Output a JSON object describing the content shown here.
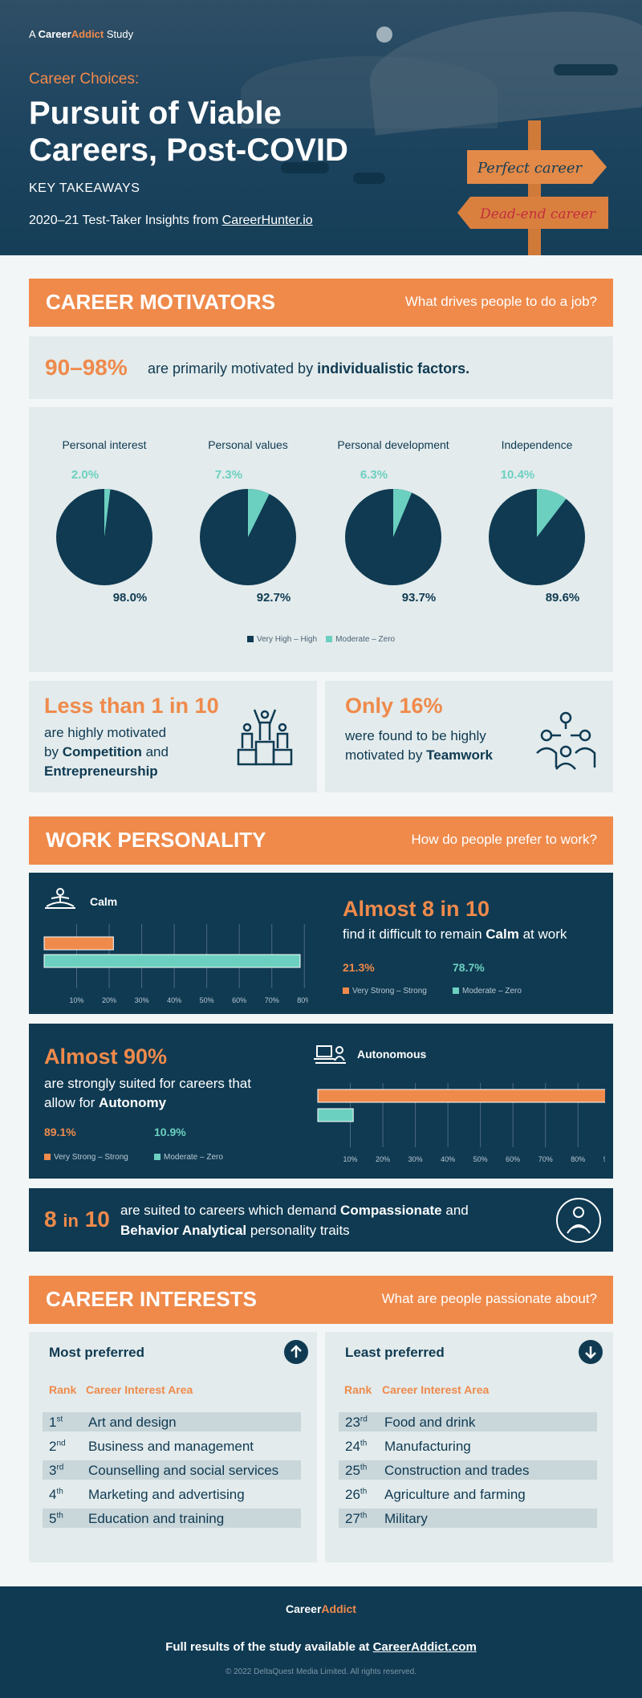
{
  "header": {
    "brand_prefix": "A",
    "brand_career": "Career",
    "brand_addict": "Addict",
    "brand_suffix": "Study",
    "kicker": "Career Choices:",
    "title": "Pursuit of Viable Careers, Post-COVID",
    "subtitle": "KEY TAKEAWAYS",
    "insight_prefix": "2020–21 Test-Taker Insights from",
    "insight_link": "CareerHunter.io",
    "sign_top": "Perfect career",
    "sign_bottom": "Dead-end career"
  },
  "motivators": {
    "title": "CAREER MOTIVATORS",
    "question": "What drives people to do a job?",
    "stat": "90–98%",
    "stat_text_pre": "are primarily motivated by",
    "stat_text_bold": "individualistic factors.",
    "less_title": "Less than 1 in 10",
    "less_l1": "are highly motivated",
    "less_l2_pre": "by",
    "less_b1": "Competition",
    "less_and": "and",
    "less_b2": "Entrepreneurship",
    "only_title": "Only 16%",
    "only_l1": "were found to be highly",
    "only_l2_pre": "motivated by",
    "only_b": "Teamwork"
  },
  "personality": {
    "title": "WORK PERSONALITY",
    "question": "How do people prefer to work?",
    "calm_label": "Calm",
    "calm_stat": "Almost 8 in 10",
    "calm_text_pre": "find it difficult to remain",
    "calm_text_bold": "Calm",
    "calm_text_post": "at work",
    "calm_v1": "21.3%",
    "calm_v2": "78.7%",
    "auto_label": "Autonomous",
    "auto_stat": "Almost 90%",
    "auto_l1": "are strongly suited for careers that",
    "auto_l2_pre": "allow for",
    "auto_l2_bold": "Autonomy",
    "auto_v1": "89.1%",
    "auto_v2": "10.9%",
    "leg1": "Very Strong – Strong",
    "leg2": "Moderate – Zero",
    "comp_stat_a": "8",
    "comp_stat_b": "in",
    "comp_stat_c": "10",
    "comp_l1_pre": "are suited to careers which demand",
    "comp_b1": "Compassionate",
    "comp_and": "and",
    "comp_b2": "Behavior Analytical",
    "comp_post": "personality traits"
  },
  "interests": {
    "title": "CAREER INTERESTS",
    "question": "What are people passionate about?",
    "most_title": "Most preferred",
    "least_title": "Least preferred",
    "rank_h": "Rank",
    "area_h": "Career Interest Area",
    "most": [
      {
        "num": "1",
        "suf": "st",
        "area": "Art and design"
      },
      {
        "num": "2",
        "suf": "nd",
        "area": "Business and management"
      },
      {
        "num": "3",
        "suf": "rd",
        "area": "Counselling and social services"
      },
      {
        "num": "4",
        "suf": "th",
        "area": "Marketing and advertising"
      },
      {
        "num": "5",
        "suf": "th",
        "area": "Education and training"
      }
    ],
    "least": [
      {
        "num": "23",
        "suf": "rd",
        "area": "Food and drink"
      },
      {
        "num": "24",
        "suf": "th",
        "area": "Manufacturing"
      },
      {
        "num": "25",
        "suf": "th",
        "area": "Construction and trades"
      },
      {
        "num": "26",
        "suf": "th",
        "area": "Agriculture and farming"
      },
      {
        "num": "27",
        "suf": "th",
        "area": "Military"
      }
    ]
  },
  "footer": {
    "brand_career": "Career",
    "brand_addict": "Addict",
    "line_pre": "Full results of the study available at",
    "line_link": "CareerAddict.com",
    "copyright": "© 2022 DeltaQuest Media Limited. All rights reserved."
  },
  "colors": {
    "navy": "#0f3a52",
    "orange": "#ef8a4b",
    "teal": "#6cd0c0",
    "panel": "#e3ebec"
  },
  "chart_data": [
    {
      "type": "pie",
      "title": "",
      "legend": [
        "Very High – High",
        "Moderate – Zero"
      ],
      "legend_position": "bottom",
      "pies": [
        {
          "name": "Personal interest",
          "values": [
            98.0,
            2.0
          ],
          "labels": [
            "98.0%",
            "2.0%"
          ]
        },
        {
          "name": "Personal values",
          "values": [
            92.7,
            7.3
          ],
          "labels": [
            "92.7%",
            "7.3%"
          ]
        },
        {
          "name": "Personal development",
          "values": [
            93.7,
            6.3
          ],
          "labels": [
            "93.7%",
            "6.3%"
          ]
        },
        {
          "name": "Independence",
          "values": [
            89.6,
            10.4
          ],
          "labels": [
            "89.6%",
            "10.4%"
          ]
        }
      ]
    },
    {
      "type": "bar",
      "orientation": "horizontal",
      "title": "Calm",
      "categories": [
        "Very Strong – Strong",
        "Moderate – Zero"
      ],
      "values": [
        21.3,
        78.7
      ],
      "xlim": [
        0,
        90
      ],
      "xticks": [
        "10%",
        "20%",
        "30%",
        "40%",
        "50%",
        "60%",
        "70%",
        "80%",
        "90%"
      ],
      "grid": true
    },
    {
      "type": "bar",
      "orientation": "horizontal",
      "title": "Autonomous",
      "categories": [
        "Very Strong – Strong",
        "Moderate – Zero"
      ],
      "values": [
        89.1,
        10.9
      ],
      "xlim": [
        0,
        90
      ],
      "xticks": [
        "10%",
        "20%",
        "30%",
        "40%",
        "50%",
        "60%",
        "70%",
        "80%",
        "90%"
      ],
      "grid": true
    }
  ]
}
